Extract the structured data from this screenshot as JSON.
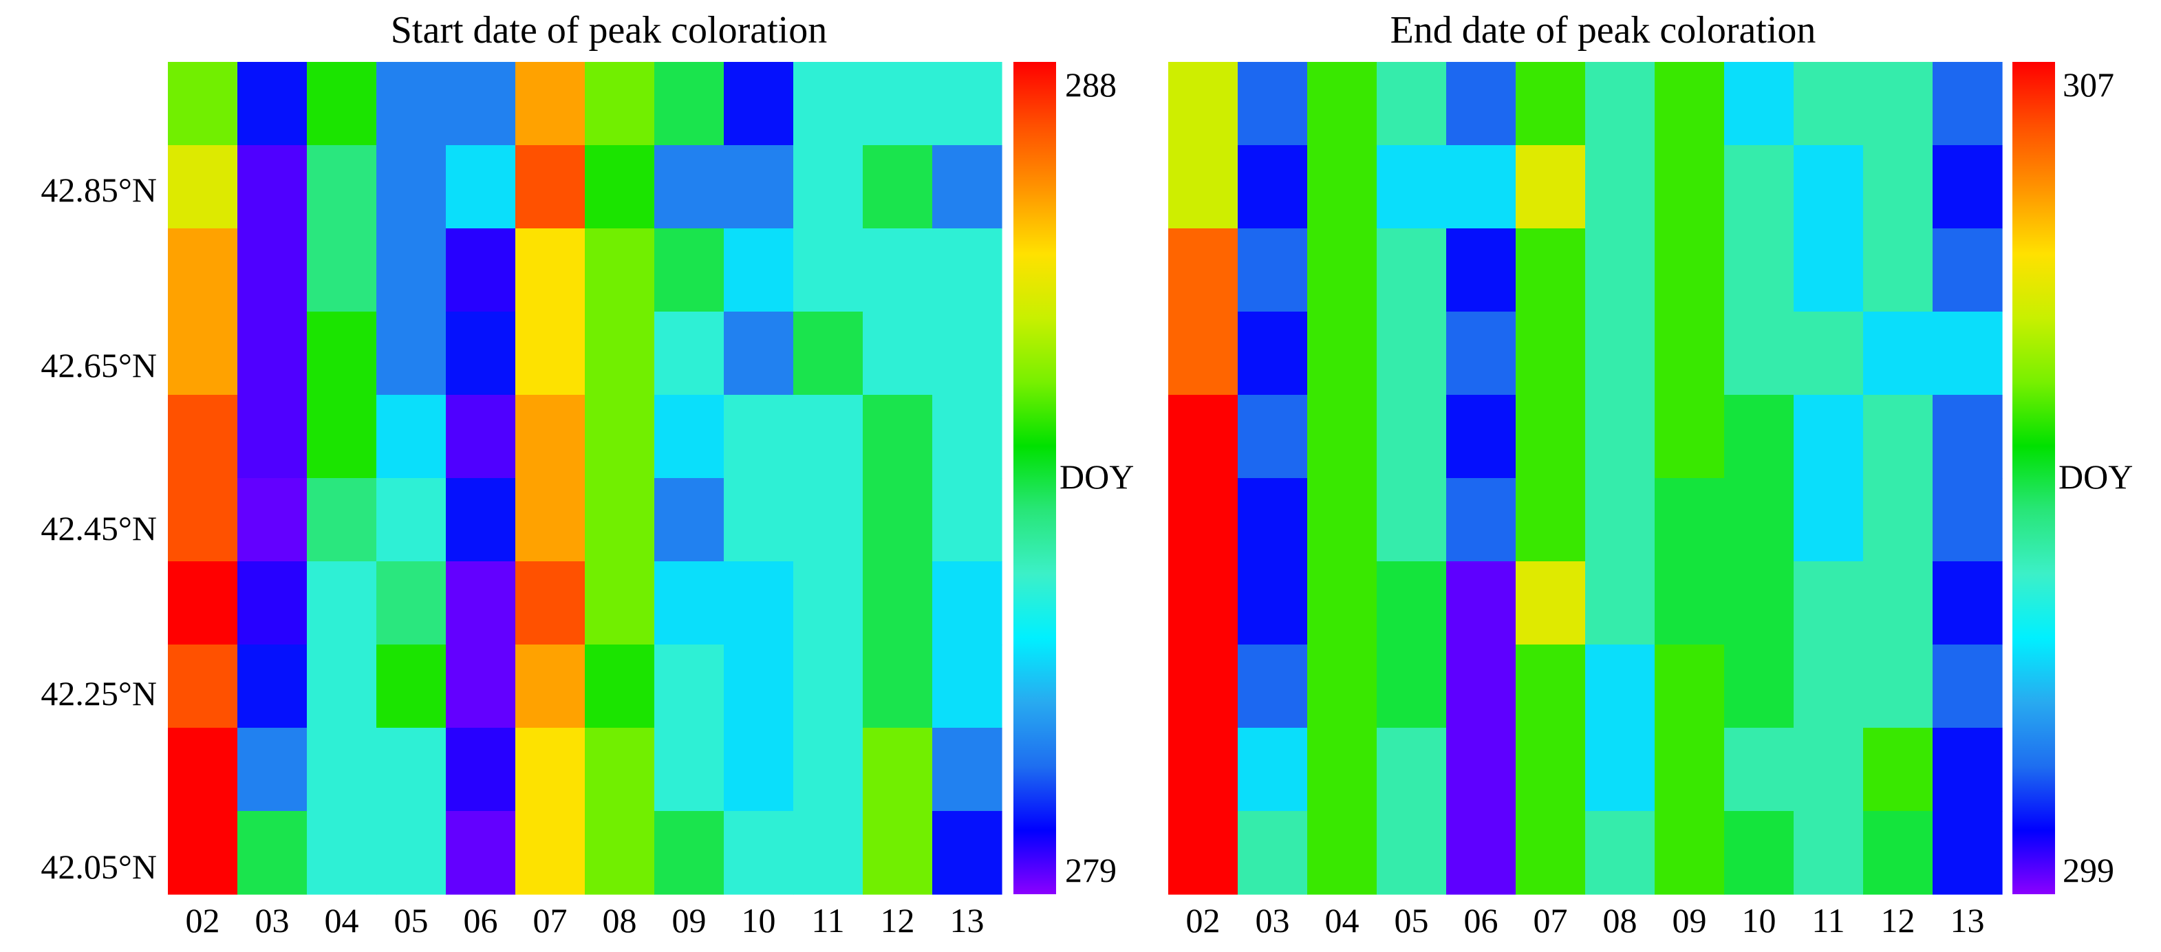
{
  "colormap": [
    "#8b00ff",
    "#0000ff",
    "#1e6ef0",
    "#28aaf0",
    "#00f0ff",
    "#3cf0c8",
    "#28e678",
    "#00e100",
    "#78f000",
    "#c8f000",
    "#ffe100",
    "#ff9600",
    "#ff5000",
    "#ff0000"
  ],
  "chart_data": [
    {
      "type": "heatmap",
      "title": "Start date of peak coloration",
      "x_labels": [
        "02",
        "03",
        "04",
        "05",
        "06",
        "07",
        "08",
        "09",
        "10",
        "11",
        "12",
        "13"
      ],
      "y_tick_labels": [
        "42.85°N",
        "42.65°N",
        "42.45°N",
        "42.25°N",
        "42.05°N"
      ],
      "colorbar": {
        "label": "DOY",
        "min": 279,
        "max": 288,
        "min_label": "279",
        "max_label": "288"
      },
      "rows_top_to_bottom": [
        [
          284.5,
          279.8,
          284.0,
          280.6,
          280.6,
          286.5,
          284.5,
          283.4,
          279.8,
          282.3,
          282.3,
          282.3
        ],
        [
          285.5,
          279.3,
          283.1,
          280.6,
          281.6,
          287.3,
          284.0,
          280.6,
          280.6,
          282.3,
          283.4,
          280.6
        ],
        [
          286.5,
          279.3,
          283.1,
          280.6,
          279.5,
          285.9,
          284.5,
          283.4,
          281.6,
          282.3,
          282.3,
          282.3
        ],
        [
          286.5,
          279.3,
          284.0,
          280.6,
          279.8,
          285.9,
          284.5,
          282.3,
          280.6,
          283.4,
          282.3,
          282.3
        ],
        [
          287.3,
          279.3,
          284.0,
          281.6,
          279.3,
          286.5,
          284.5,
          281.6,
          282.3,
          282.3,
          283.4,
          282.3
        ],
        [
          287.3,
          279.2,
          283.1,
          282.3,
          279.8,
          286.5,
          284.5,
          280.6,
          282.3,
          282.3,
          283.4,
          282.3
        ],
        [
          288.0,
          279.5,
          282.3,
          283.1,
          279.2,
          287.3,
          284.5,
          281.6,
          281.6,
          282.3,
          283.4,
          281.6
        ],
        [
          287.3,
          279.8,
          282.3,
          284.0,
          279.2,
          286.5,
          284.0,
          282.3,
          281.6,
          282.3,
          283.4,
          281.6
        ],
        [
          288.0,
          280.6,
          282.3,
          282.3,
          279.5,
          285.9,
          284.5,
          282.3,
          281.6,
          282.3,
          284.5,
          280.6
        ],
        [
          288.0,
          283.4,
          282.3,
          282.3,
          279.2,
          285.9,
          284.5,
          283.4,
          282.3,
          282.3,
          284.5,
          279.8
        ]
      ]
    },
    {
      "type": "heatmap",
      "title": "End date of peak coloration",
      "x_labels": [
        "02",
        "03",
        "04",
        "05",
        "06",
        "07",
        "08",
        "09",
        "10",
        "11",
        "12",
        "13"
      ],
      "y_tick_labels": [],
      "colorbar": {
        "label": "DOY",
        "min": 299,
        "max": 307,
        "min_label": "299",
        "max_label": "307"
      },
      "rows_top_to_bottom": [
        [
          304.6,
          300.2,
          303.6,
          302.3,
          300.2,
          303.6,
          302.3,
          303.6,
          301.3,
          302.3,
          302.3,
          300.2
        ],
        [
          304.6,
          299.7,
          303.6,
          301.3,
          301.3,
          304.8,
          302.3,
          303.6,
          302.3,
          301.3,
          302.3,
          299.7
        ],
        [
          306.2,
          300.2,
          303.6,
          302.3,
          299.7,
          303.6,
          302.3,
          303.6,
          302.3,
          301.3,
          302.3,
          300.2
        ],
        [
          306.2,
          299.7,
          303.6,
          302.3,
          300.2,
          303.6,
          302.3,
          303.6,
          302.3,
          302.3,
          301.3,
          301.3
        ],
        [
          307.0,
          300.2,
          303.6,
          302.3,
          299.7,
          303.6,
          302.3,
          303.6,
          303.0,
          301.3,
          302.3,
          300.2
        ],
        [
          307.0,
          299.7,
          303.6,
          302.3,
          300.2,
          303.6,
          302.3,
          303.0,
          303.0,
          301.3,
          302.3,
          300.2
        ],
        [
          307.0,
          299.7,
          303.6,
          303.0,
          299.2,
          304.8,
          302.3,
          303.0,
          303.0,
          302.3,
          302.3,
          299.7
        ],
        [
          307.0,
          300.2,
          303.6,
          303.0,
          299.2,
          303.6,
          301.3,
          303.6,
          303.0,
          302.3,
          302.3,
          300.2
        ],
        [
          307.0,
          301.3,
          303.6,
          302.3,
          299.2,
          303.6,
          301.3,
          303.6,
          302.3,
          302.3,
          303.6,
          299.7
        ],
        [
          307.0,
          302.3,
          303.6,
          302.3,
          299.2,
          303.6,
          302.3,
          303.6,
          303.0,
          302.3,
          303.0,
          299.7
        ]
      ]
    }
  ]
}
